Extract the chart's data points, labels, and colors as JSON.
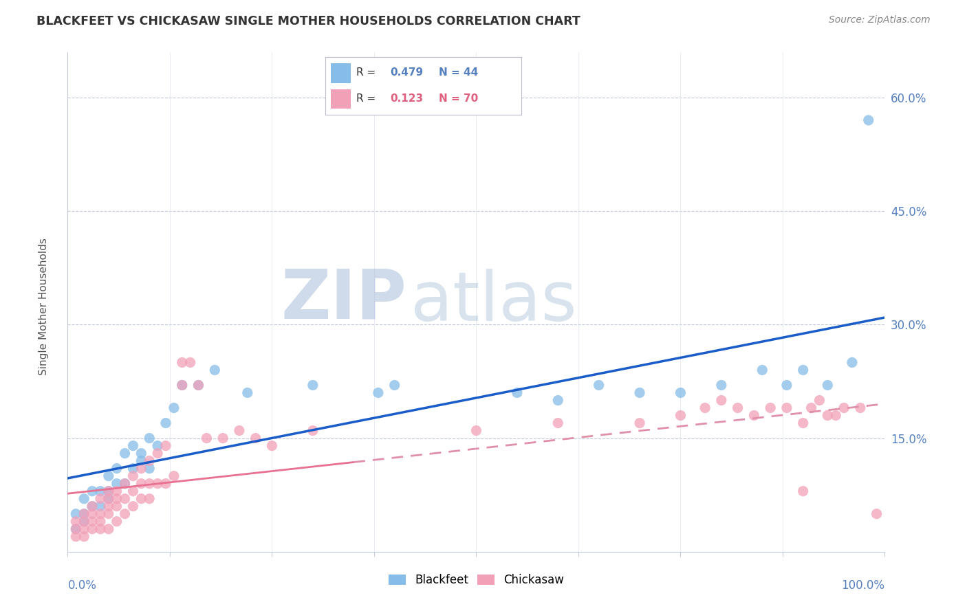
{
  "title": "BLACKFEET VS CHICKASAW SINGLE MOTHER HOUSEHOLDS CORRELATION CHART",
  "source": "Source: ZipAtlas.com",
  "ylabel": "Single Mother Households",
  "yticks": [
    0.0,
    0.15,
    0.3,
    0.45,
    0.6
  ],
  "ytick_labels": [
    "",
    "15.0%",
    "30.0%",
    "45.0%",
    "60.0%"
  ],
  "xlim": [
    0,
    1.0
  ],
  "ylim": [
    0,
    0.66
  ],
  "watermark_zip": "ZIP",
  "watermark_atlas": "atlas",
  "legend_r_blackfeet": "R = ",
  "legend_val_blackfeet": " 0.479",
  "legend_n_blackfeet": "  N = 44",
  "legend_r_chickasaw": "R = ",
  "legend_val_chickasaw": " 0.123",
  "legend_n_chickasaw": "  N = 70",
  "blackfeet_color": "#85BCE8",
  "chickasaw_color": "#F2A0B8",
  "blackfeet_line_color": "#1A5CC8",
  "chickasaw_solid_color": "#E87090",
  "chickasaw_dash_color": "#E090A8",
  "background_color": "#FFFFFF",
  "blackfeet_x": [
    0.01,
    0.01,
    0.02,
    0.02,
    0.02,
    0.03,
    0.03,
    0.04,
    0.04,
    0.05,
    0.05,
    0.05,
    0.06,
    0.06,
    0.07,
    0.07,
    0.08,
    0.08,
    0.09,
    0.09,
    0.1,
    0.1,
    0.11,
    0.12,
    0.13,
    0.14,
    0.16,
    0.18,
    0.22,
    0.3,
    0.38,
    0.4,
    0.55,
    0.6,
    0.65,
    0.7,
    0.75,
    0.8,
    0.85,
    0.88,
    0.9,
    0.93,
    0.96,
    0.98
  ],
  "blackfeet_y": [
    0.03,
    0.05,
    0.04,
    0.07,
    0.05,
    0.06,
    0.08,
    0.08,
    0.06,
    0.07,
    0.1,
    0.08,
    0.09,
    0.11,
    0.09,
    0.13,
    0.11,
    0.14,
    0.13,
    0.12,
    0.11,
    0.15,
    0.14,
    0.17,
    0.19,
    0.22,
    0.22,
    0.24,
    0.21,
    0.22,
    0.21,
    0.22,
    0.21,
    0.2,
    0.22,
    0.21,
    0.21,
    0.22,
    0.24,
    0.22,
    0.24,
    0.22,
    0.25,
    0.57
  ],
  "chickasaw_x": [
    0.01,
    0.01,
    0.01,
    0.02,
    0.02,
    0.02,
    0.02,
    0.03,
    0.03,
    0.03,
    0.03,
    0.04,
    0.04,
    0.04,
    0.04,
    0.05,
    0.05,
    0.05,
    0.05,
    0.05,
    0.06,
    0.06,
    0.06,
    0.06,
    0.07,
    0.07,
    0.07,
    0.08,
    0.08,
    0.08,
    0.09,
    0.09,
    0.09,
    0.1,
    0.1,
    0.1,
    0.11,
    0.11,
    0.12,
    0.12,
    0.13,
    0.14,
    0.14,
    0.15,
    0.16,
    0.17,
    0.19,
    0.21,
    0.23,
    0.25,
    0.3,
    0.5,
    0.6,
    0.7,
    0.75,
    0.78,
    0.8,
    0.82,
    0.84,
    0.86,
    0.88,
    0.9,
    0.9,
    0.91,
    0.92,
    0.93,
    0.94,
    0.95,
    0.97,
    0.99
  ],
  "chickasaw_y": [
    0.02,
    0.03,
    0.04,
    0.02,
    0.03,
    0.04,
    0.05,
    0.03,
    0.04,
    0.05,
    0.06,
    0.03,
    0.04,
    0.05,
    0.07,
    0.03,
    0.05,
    0.06,
    0.07,
    0.08,
    0.04,
    0.06,
    0.07,
    0.08,
    0.05,
    0.07,
    0.09,
    0.06,
    0.08,
    0.1,
    0.07,
    0.09,
    0.11,
    0.07,
    0.09,
    0.12,
    0.09,
    0.13,
    0.09,
    0.14,
    0.1,
    0.22,
    0.25,
    0.25,
    0.22,
    0.15,
    0.15,
    0.16,
    0.15,
    0.14,
    0.16,
    0.16,
    0.17,
    0.17,
    0.18,
    0.19,
    0.2,
    0.19,
    0.18,
    0.19,
    0.19,
    0.08,
    0.17,
    0.19,
    0.2,
    0.18,
    0.18,
    0.19,
    0.19,
    0.05
  ],
  "xtick_positions": [
    0.0,
    0.125,
    0.25,
    0.375,
    0.5,
    0.625,
    0.75,
    0.875,
    1.0
  ]
}
